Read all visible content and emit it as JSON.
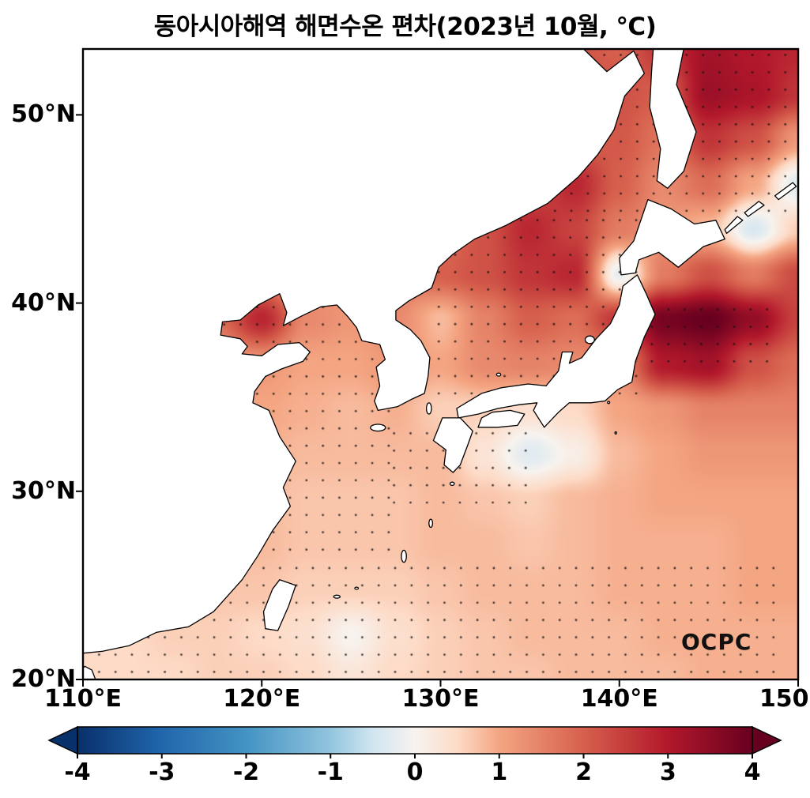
{
  "title": "동아시아해역 해면수온 편차(2023년 10월, ℃)",
  "watermark": "OCPC",
  "axes": {
    "lat_ticks": [
      {
        "label": "50°N",
        "value": 50
      },
      {
        "label": "40°N",
        "value": 40
      },
      {
        "label": "30°N",
        "value": 30
      },
      {
        "label": "20°N",
        "value": 20
      }
    ],
    "lon_ticks": [
      {
        "label": "110°E",
        "value": 110
      },
      {
        "label": "120°E",
        "value": 120
      },
      {
        "label": "130°E",
        "value": 130
      },
      {
        "label": "140°E",
        "value": 140
      },
      {
        "label": "150°E",
        "value": 150
      }
    ]
  },
  "colorbar": {
    "ticks": [
      {
        "label": "-4",
        "value": -4
      },
      {
        "label": "-3",
        "value": -3
      },
      {
        "label": "-2",
        "value": -2
      },
      {
        "label": "-1",
        "value": -1
      },
      {
        "label": "0",
        "value": 0
      },
      {
        "label": "1",
        "value": 1
      },
      {
        "label": "2",
        "value": 2
      },
      {
        "label": "3",
        "value": 3
      },
      {
        "label": "4",
        "value": 4
      }
    ],
    "stops": [
      {
        "v": -4,
        "c": "#08306b"
      },
      {
        "v": -3,
        "c": "#2166ac"
      },
      {
        "v": -2,
        "c": "#4393c3"
      },
      {
        "v": -1,
        "c": "#92c5de"
      },
      {
        "v": -0.5,
        "c": "#d1e5f0"
      },
      {
        "v": 0,
        "c": "#f7f3ef"
      },
      {
        "v": 0.5,
        "c": "#fddbc7"
      },
      {
        "v": 1,
        "c": "#f4a582"
      },
      {
        "v": 2,
        "c": "#d6604d"
      },
      {
        "v": 3,
        "c": "#b2182b"
      },
      {
        "v": 4,
        "c": "#67001f"
      }
    ]
  },
  "chart_data": {
    "type": "heatmap",
    "title": "동아시아해역 해면수온 편차(2023년 10월, ℃)",
    "units": "°C",
    "colormap": "RdBu_r",
    "value_range": [
      -4,
      4
    ],
    "lon_range": [
      110,
      150
    ],
    "lat_range": [
      20,
      53.5
    ],
    "grid": {
      "lons": [
        110,
        112.5,
        115,
        117.5,
        120,
        122.5,
        125,
        127.5,
        130,
        132.5,
        135,
        137.5,
        140,
        142.5,
        145,
        147.5,
        150
      ],
      "lats": [
        53.5,
        51.11,
        48.71,
        46.32,
        43.93,
        41.54,
        39.14,
        36.75,
        34.36,
        31.96,
        29.57,
        27.18,
        24.79,
        22.39,
        20.0
      ],
      "values": [
        [
          1.0,
          1.0,
          1.0,
          1.0,
          1.0,
          1.2,
          1.4,
          1.5,
          1.8,
          2.0,
          2.0,
          2.2,
          2.0,
          2.6,
          3.2,
          3.0,
          2.8
        ],
        [
          1.0,
          1.0,
          1.0,
          1.0,
          1.0,
          1.2,
          1.4,
          1.5,
          1.7,
          1.9,
          2.0,
          2.1,
          2.2,
          2.0,
          3.3,
          3.1,
          2.6
        ],
        [
          0.9,
          0.9,
          0.9,
          0.9,
          1.0,
          1.1,
          1.3,
          1.4,
          1.5,
          1.7,
          1.9,
          2.0,
          2.1,
          1.7,
          2.6,
          2.2,
          1.2
        ],
        [
          0.8,
          0.8,
          0.8,
          0.9,
          1.0,
          1.0,
          1.2,
          1.3,
          1.5,
          1.8,
          2.2,
          2.8,
          2.0,
          1.4,
          1.8,
          1.0,
          -0.3
        ],
        [
          0.8,
          0.8,
          0.8,
          0.9,
          1.0,
          1.0,
          1.2,
          1.4,
          1.8,
          2.2,
          2.8,
          2.4,
          1.6,
          1.2,
          0.8,
          -0.4,
          0.6
        ],
        [
          0.8,
          0.9,
          1.0,
          1.2,
          1.4,
          1.2,
          1.4,
          1.6,
          2.0,
          2.2,
          2.6,
          2.8,
          -0.2,
          1.6,
          2.2,
          1.6,
          2.3
        ],
        [
          1.0,
          1.0,
          1.2,
          1.8,
          2.8,
          1.4,
          1.2,
          1.4,
          0.8,
          1.5,
          2.0,
          1.8,
          2.6,
          3.8,
          4.0,
          3.4,
          2.4
        ],
        [
          0.9,
          0.9,
          1.0,
          1.1,
          1.2,
          1.0,
          1.0,
          1.2,
          1.0,
          1.4,
          1.5,
          1.4,
          1.4,
          3.0,
          3.2,
          2.2,
          1.8
        ],
        [
          0.8,
          0.8,
          0.9,
          1.0,
          1.0,
          0.9,
          0.8,
          0.9,
          0.6,
          0.6,
          0.4,
          0.5,
          1.0,
          1.2,
          1.5,
          1.5,
          1.5
        ],
        [
          0.8,
          0.8,
          0.8,
          0.9,
          0.9,
          0.8,
          0.8,
          0.8,
          0.8,
          0.3,
          -0.3,
          0.1,
          0.8,
          1.0,
          1.2,
          1.2,
          1.2
        ],
        [
          0.7,
          0.7,
          0.8,
          0.8,
          0.8,
          0.7,
          0.7,
          0.7,
          0.8,
          0.7,
          0.6,
          0.8,
          0.9,
          1.0,
          1.0,
          1.0,
          1.0
        ],
        [
          0.6,
          0.7,
          0.7,
          0.8,
          0.8,
          0.7,
          0.7,
          0.7,
          0.8,
          0.8,
          0.7,
          0.8,
          0.9,
          0.9,
          0.9,
          1.0,
          1.0
        ],
        [
          0.6,
          0.6,
          0.7,
          0.7,
          0.7,
          0.6,
          0.6,
          0.6,
          0.7,
          0.8,
          0.8,
          0.8,
          0.9,
          0.9,
          0.9,
          1.0,
          1.0
        ],
        [
          0.5,
          0.5,
          0.6,
          0.6,
          0.5,
          0.4,
          0.0,
          0.4,
          0.6,
          0.7,
          0.8,
          0.8,
          0.8,
          0.9,
          0.9,
          0.9,
          0.9
        ],
        [
          0.5,
          0.5,
          0.5,
          0.6,
          0.6,
          0.5,
          0.3,
          0.5,
          0.6,
          0.7,
          0.7,
          0.8,
          0.8,
          0.8,
          0.9,
          0.9,
          0.9
        ]
      ]
    },
    "stipple_boxes": [
      [
        117.5,
        26.5,
        127.5,
        41.0
      ],
      [
        129.5,
        34.8,
        141.0,
        44.5
      ],
      [
        136.0,
        44.5,
        150.0,
        53.5
      ],
      [
        110.5,
        20.0,
        149.0,
        26.3
      ],
      [
        127.0,
        29.0,
        135.5,
        33.8
      ],
      [
        140.5,
        36.5,
        148.5,
        40.3
      ]
    ]
  },
  "geo": {
    "polygons": {
      "mainland-asia": [
        [
          110,
          53.5
        ],
        [
          138.0,
          53.5
        ],
        [
          139.3,
          52.3
        ],
        [
          140.8,
          53.4
        ],
        [
          141.4,
          52.2
        ],
        [
          140.3,
          51.0
        ],
        [
          139.7,
          49.2
        ],
        [
          138.8,
          47.9
        ],
        [
          137.7,
          46.7
        ],
        [
          136.0,
          45.3
        ],
        [
          133.6,
          44.1
        ],
        [
          131.9,
          43.4
        ],
        [
          130.7,
          42.6
        ],
        [
          129.9,
          41.9
        ],
        [
          129.5,
          40.8
        ],
        [
          128.2,
          40.1
        ],
        [
          127.5,
          39.6
        ],
        [
          127.5,
          39.1
        ],
        [
          128.3,
          38.6
        ],
        [
          128.9,
          38.0
        ],
        [
          129.4,
          37.1
        ],
        [
          129.3,
          36.1
        ],
        [
          129.1,
          35.2
        ],
        [
          128.4,
          34.9
        ],
        [
          127.6,
          34.5
        ],
        [
          126.5,
          34.3
        ],
        [
          126.3,
          34.8
        ],
        [
          126.6,
          35.6
        ],
        [
          126.4,
          36.6
        ],
        [
          126.9,
          37.0
        ],
        [
          126.6,
          37.8
        ],
        [
          125.6,
          38.0
        ],
        [
          125.3,
          38.7
        ],
        [
          124.8,
          39.3
        ],
        [
          124.2,
          39.9
        ],
        [
          123.3,
          39.8
        ],
        [
          122.2,
          39.3
        ],
        [
          121.2,
          38.8
        ],
        [
          121.4,
          39.5
        ],
        [
          121.0,
          40.5
        ],
        [
          119.8,
          39.9
        ],
        [
          118.8,
          39.1
        ],
        [
          117.8,
          39.0
        ],
        [
          117.7,
          38.3
        ],
        [
          118.8,
          38.1
        ],
        [
          119.2,
          37.7
        ],
        [
          118.9,
          37.3
        ],
        [
          120.0,
          37.2
        ],
        [
          120.9,
          37.8
        ],
        [
          122.1,
          37.9
        ],
        [
          122.7,
          37.4
        ],
        [
          122.3,
          36.9
        ],
        [
          121.1,
          36.5
        ],
        [
          120.2,
          36.1
        ],
        [
          119.6,
          35.3
        ],
        [
          119.5,
          34.7
        ],
        [
          120.4,
          34.3
        ],
        [
          121.0,
          32.9
        ],
        [
          121.9,
          31.6
        ],
        [
          121.2,
          30.2
        ],
        [
          121.6,
          29.2
        ],
        [
          120.6,
          27.9
        ],
        [
          119.8,
          26.6
        ],
        [
          118.9,
          25.3
        ],
        [
          117.3,
          23.6
        ],
        [
          115.9,
          22.8
        ],
        [
          114.1,
          22.5
        ],
        [
          112.6,
          21.8
        ],
        [
          111.1,
          21.5
        ],
        [
          110.0,
          21.4
        ]
      ],
      "sakhalin": [
        [
          141.9,
          53.5
        ],
        [
          143.6,
          53.5
        ],
        [
          143.2,
          51.6
        ],
        [
          144.3,
          49.1
        ],
        [
          143.6,
          47.0
        ],
        [
          142.7,
          46.1
        ],
        [
          142.1,
          46.5
        ],
        [
          142.3,
          48.2
        ],
        [
          141.7,
          50.4
        ],
        [
          141.8,
          52.3
        ]
      ],
      "hokkaido": [
        [
          141.6,
          45.5
        ],
        [
          142.9,
          45.0
        ],
        [
          144.2,
          44.2
        ],
        [
          145.4,
          44.4
        ],
        [
          145.9,
          43.4
        ],
        [
          144.7,
          43.0
        ],
        [
          143.3,
          41.9
        ],
        [
          142.2,
          42.7
        ],
        [
          141.1,
          42.3
        ],
        [
          140.9,
          41.6
        ],
        [
          140.1,
          41.5
        ],
        [
          140.0,
          42.4
        ],
        [
          140.8,
          43.3
        ],
        [
          141.2,
          44.4
        ]
      ],
      "honshu": [
        [
          141.0,
          41.5
        ],
        [
          141.5,
          40.5
        ],
        [
          142.0,
          39.4
        ],
        [
          141.4,
          38.2
        ],
        [
          140.9,
          36.9
        ],
        [
          140.7,
          35.8
        ],
        [
          139.9,
          35.4
        ],
        [
          139.2,
          34.8
        ],
        [
          138.4,
          34.7
        ],
        [
          137.2,
          34.7
        ],
        [
          136.6,
          34.2
        ],
        [
          135.8,
          33.4
        ],
        [
          135.2,
          34.3
        ],
        [
          135.4,
          34.7
        ],
        [
          134.4,
          34.6
        ],
        [
          133.2,
          34.4
        ],
        [
          132.1,
          34.1
        ],
        [
          131.0,
          33.9
        ],
        [
          130.9,
          34.4
        ],
        [
          132.3,
          35.2
        ],
        [
          133.4,
          35.5
        ],
        [
          134.9,
          35.7
        ],
        [
          135.9,
          35.6
        ],
        [
          136.6,
          36.4
        ],
        [
          136.8,
          37.4
        ],
        [
          137.4,
          37.4
        ],
        [
          137.2,
          36.8
        ],
        [
          137.9,
          37.1
        ],
        [
          138.7,
          38.1
        ],
        [
          139.5,
          38.9
        ],
        [
          140.0,
          39.9
        ],
        [
          140.2,
          40.9
        ],
        [
          140.6,
          41.2
        ]
      ],
      "kyushu": [
        [
          130.1,
          33.9
        ],
        [
          131.1,
          33.9
        ],
        [
          131.8,
          33.2
        ],
        [
          131.5,
          32.4
        ],
        [
          131.1,
          31.4
        ],
        [
          130.7,
          31.0
        ],
        [
          130.2,
          31.4
        ],
        [
          130.3,
          32.2
        ],
        [
          129.6,
          32.7
        ],
        [
          129.9,
          33.4
        ]
      ],
      "shikoku": [
        [
          132.1,
          33.4
        ],
        [
          133.2,
          33.4
        ],
        [
          134.3,
          33.5
        ],
        [
          134.7,
          34.1
        ],
        [
          133.9,
          34.3
        ],
        [
          132.9,
          34.2
        ],
        [
          132.3,
          33.9
        ]
      ],
      "taiwan": [
        [
          121.0,
          25.3
        ],
        [
          121.9,
          25.0
        ],
        [
          121.5,
          23.9
        ],
        [
          120.9,
          22.6
        ],
        [
          120.2,
          22.7
        ],
        [
          120.1,
          23.6
        ],
        [
          120.6,
          24.8
        ]
      ],
      "hainan-corner": [
        [
          110.0,
          20.0
        ],
        [
          110.7,
          20.0
        ],
        [
          110.5,
          20.5
        ],
        [
          110.1,
          20.7
        ],
        [
          110.0,
          20.6
        ]
      ]
    },
    "kuril_islands": [
      [
        [
          146.0,
          43.7
        ],
        [
          146.9,
          44.4
        ],
        [
          146.6,
          44.6
        ],
        [
          145.9,
          43.9
        ]
      ],
      [
        [
          147.2,
          44.6
        ],
        [
          148.1,
          45.2
        ],
        [
          147.8,
          45.4
        ],
        [
          147.0,
          44.8
        ]
      ],
      [
        [
          148.9,
          45.5
        ],
        [
          149.9,
          46.2
        ],
        [
          149.7,
          46.4
        ],
        [
          148.7,
          45.7
        ]
      ]
    ],
    "small_islands": [
      [
        126.5,
        33.38,
        0.42,
        0.18
      ],
      [
        129.35,
        34.4,
        0.14,
        0.3
      ],
      [
        138.35,
        38.05,
        0.26,
        0.2
      ],
      [
        133.25,
        36.2,
        0.12,
        0.08
      ],
      [
        127.95,
        26.55,
        0.14,
        0.32
      ],
      [
        129.45,
        28.3,
        0.1,
        0.22
      ],
      [
        130.65,
        30.4,
        0.12,
        0.09
      ],
      [
        124.2,
        24.4,
        0.18,
        0.08
      ],
      [
        125.3,
        24.85,
        0.1,
        0.06
      ],
      [
        139.4,
        34.72,
        0.06,
        0.06
      ],
      [
        139.8,
        33.1,
        0.05,
        0.06
      ]
    ]
  }
}
